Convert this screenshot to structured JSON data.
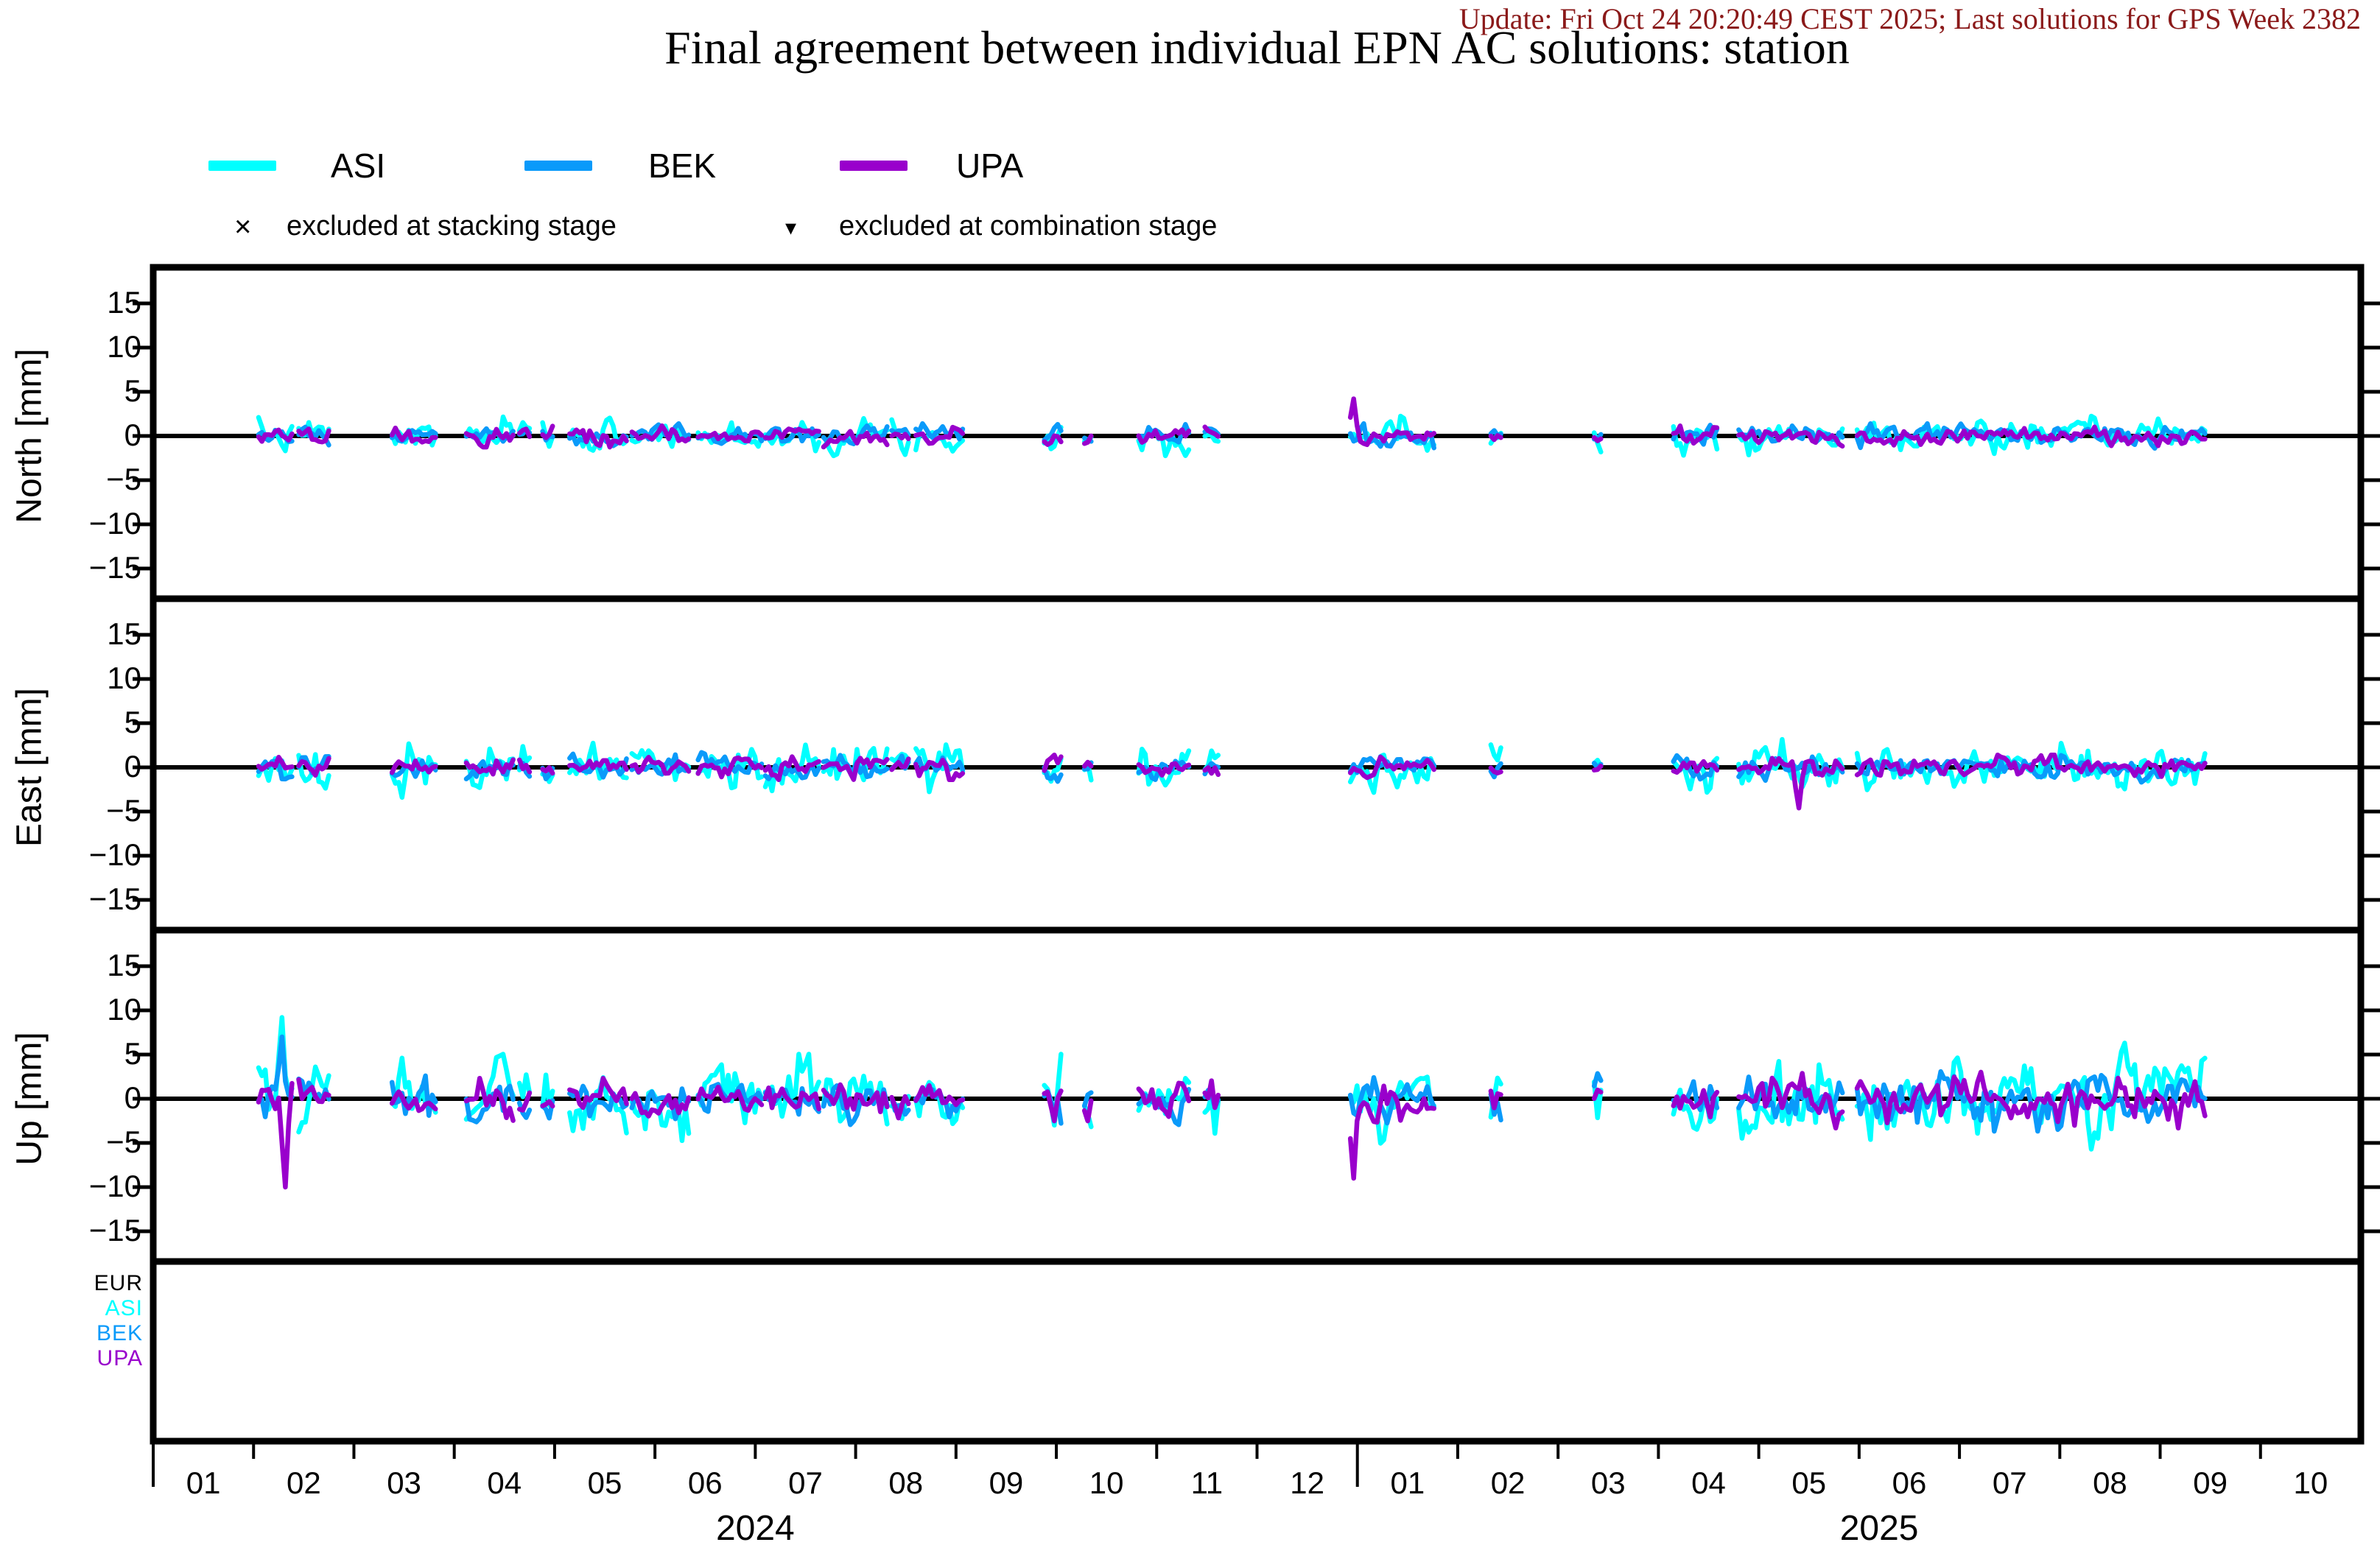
{
  "header": {
    "update_text": "Update: Fri Oct 24 20:20:49 CEST 2025; Last solutions for GPS Week 2382",
    "title": "Final agreement between individual EPN AC solutions: station"
  },
  "colors": {
    "update_text": "#8B1A1A",
    "frame": "#000000",
    "background": "#ffffff"
  },
  "legend": {
    "series": [
      {
        "label": "ASI",
        "color": "#00FFFF"
      },
      {
        "label": "BEK",
        "color": "#0A9AFA"
      },
      {
        "label": "UPA",
        "color": "#9900CC"
      }
    ],
    "exclusions": [
      {
        "symbol": "×",
        "label": "excluded at stacking stage"
      },
      {
        "symbol": "▾",
        "label": "excluded at combination stage"
      }
    ]
  },
  "exclusion_panel": {
    "rows": [
      {
        "label": "EUR",
        "color": "#000000"
      },
      {
        "label": "ASI",
        "color": "#00FFFF"
      },
      {
        "label": "BEK",
        "color": "#0A9AFA"
      },
      {
        "label": "UPA",
        "color": "#9900CC"
      }
    ]
  },
  "chart_data": {
    "type": "line",
    "title": "Final agreement between individual EPN AC solutions: station",
    "x": {
      "unit": "month",
      "start": "2024-01",
      "months_total": 22,
      "tick_labels": [
        "01",
        "02",
        "03",
        "04",
        "05",
        "06",
        "07",
        "08",
        "09",
        "10",
        "11",
        "12",
        "01",
        "02",
        "03",
        "04",
        "05",
        "06",
        "07",
        "08",
        "09",
        "10"
      ],
      "year_labels": [
        {
          "text": "2024",
          "center_month": 6
        },
        {
          "text": "2025",
          "center_month": 17.2
        }
      ]
    },
    "y": {
      "unit": "mm",
      "tick_labels": [
        "15",
        "10",
        "5",
        "0",
        "−5",
        "−10",
        "−15"
      ],
      "tick_values": [
        15,
        10,
        5,
        0,
        -5,
        -10,
        -15
      ],
      "ylim": [
        -18.75,
        18.75
      ]
    },
    "series_order": [
      "ASI",
      "BEK",
      "UPA"
    ],
    "series_colors": {
      "ASI": "#00FFFF",
      "BEK": "#0A9AFA",
      "UPA": "#9900CC"
    },
    "panels": [
      {
        "name": "North",
        "ylabel": "North [mm]",
        "noise_sd_mm": {
          "ASI": 0.8,
          "BEK": 0.5,
          "UPA": 0.45
        }
      },
      {
        "name": "East",
        "ylabel": "East [mm]",
        "noise_sd_mm": {
          "ASI": 1.15,
          "BEK": 0.6,
          "UPA": 0.5
        }
      },
      {
        "name": "Up",
        "ylabel": "Up [mm]",
        "noise_sd_mm": {
          "ASI": 1.8,
          "BEK": 1.05,
          "UPA": 0.95
        }
      }
    ],
    "up_panel_late_amplitude_factor": {
      "after_month": 14.5,
      "factor": 1.25
    },
    "samples_per_month": 30,
    "segments_months": [
      [
        1.05,
        1.38
      ],
      [
        1.45,
        1.75
      ],
      [
        2.38,
        2.8
      ],
      [
        3.12,
        3.6
      ],
      [
        3.65,
        3.76
      ],
      [
        3.88,
        3.98
      ],
      [
        4.15,
        4.72
      ],
      [
        4.77,
        5.33
      ],
      [
        5.43,
        6.05
      ],
      [
        6.1,
        6.62
      ],
      [
        6.68,
        7.32
      ],
      [
        7.36,
        7.52
      ],
      [
        7.6,
        8.05
      ],
      [
        8.88,
        9.05
      ],
      [
        9.28,
        9.36
      ],
      [
        9.82,
        10.32
      ],
      [
        10.48,
        10.62
      ],
      [
        11.93,
        12.78
      ],
      [
        13.33,
        13.42
      ],
      [
        14.36,
        14.44
      ],
      [
        15.15,
        15.58
      ],
      [
        15.8,
        16.82
      ],
      [
        16.98,
        20.45
      ]
    ],
    "spikes": [
      {
        "panel": "Up",
        "series": "ASI",
        "month": 1.3,
        "peak_mm": 9.2
      },
      {
        "panel": "Up",
        "series": "BEK",
        "month": 1.28,
        "peak_mm": 7.0
      },
      {
        "panel": "Up",
        "series": "UPA",
        "month": 1.33,
        "peak_mm": -10.0
      },
      {
        "panel": "Up",
        "series": "ASI",
        "month": 2.47,
        "peak_mm": 4.6
      },
      {
        "panel": "East",
        "series": "ASI",
        "month": 2.48,
        "peak_mm": -3.4
      },
      {
        "panel": "North",
        "series": "UPA",
        "month": 11.96,
        "peak_mm": 4.2
      },
      {
        "panel": "Up",
        "series": "UPA",
        "month": 11.96,
        "peak_mm": -9.0
      },
      {
        "panel": "East",
        "series": "UPA",
        "month": 16.4,
        "peak_mm": -4.6
      }
    ]
  }
}
